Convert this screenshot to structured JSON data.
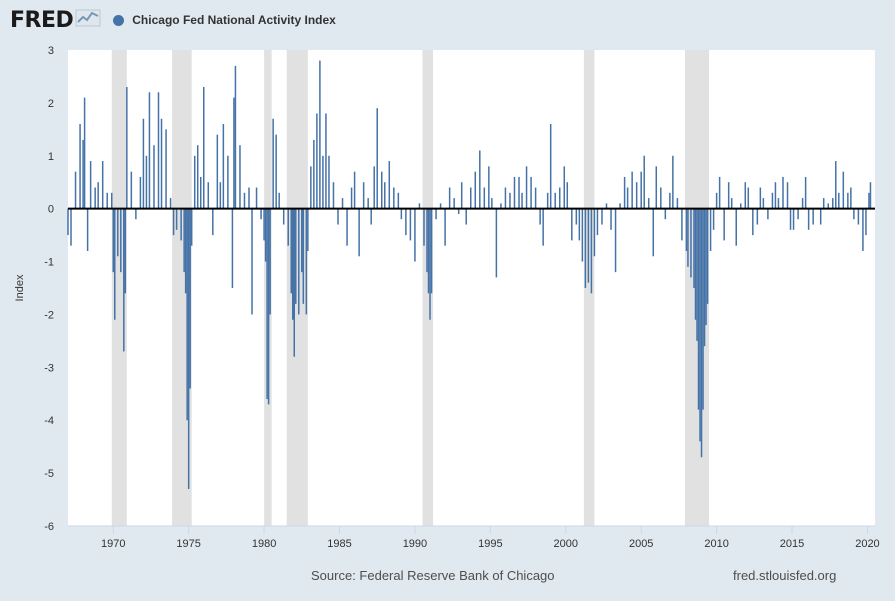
{
  "brand": {
    "name": "FRED",
    "icon": "fred-chart-icon"
  },
  "chart_data": {
    "type": "bar",
    "title": "",
    "legend": [
      {
        "name": "Chicago Fed National Activity Index",
        "color": "#4572a7"
      }
    ],
    "legend_placement": "top-left",
    "ylabel": "Index",
    "xlabel": "",
    "ylim": [
      -6,
      3
    ],
    "xlim": [
      1967.0,
      2020.5
    ],
    "y_ticks": [
      3,
      2,
      1,
      0,
      -1,
      -2,
      -3,
      -4,
      -5,
      -6
    ],
    "x_ticks": [
      1970,
      1975,
      1980,
      1985,
      1990,
      1995,
      2000,
      2005,
      2010,
      2015,
      2020
    ],
    "recessions": [
      [
        1969.9,
        1970.9
      ],
      [
        1973.9,
        1975.2
      ],
      [
        1980.0,
        1980.5
      ],
      [
        1981.5,
        1982.9
      ],
      [
        1990.5,
        1991.2
      ],
      [
        2001.2,
        2001.9
      ],
      [
        2007.9,
        2009.5
      ]
    ],
    "recession_color": "#e1e1e1",
    "series_color": "#4572a7",
    "points": [
      [
        1967.0,
        -0.5
      ],
      [
        1967.2,
        -0.7
      ],
      [
        1967.5,
        0.7
      ],
      [
        1967.8,
        1.6
      ],
      [
        1968.0,
        1.3
      ],
      [
        1968.1,
        2.1
      ],
      [
        1968.3,
        -0.8
      ],
      [
        1968.5,
        0.9
      ],
      [
        1968.8,
        0.4
      ],
      [
        1969.0,
        0.5
      ],
      [
        1969.3,
        0.9
      ],
      [
        1969.6,
        0.3
      ],
      [
        1969.9,
        0.3
      ],
      [
        1970.0,
        -1.2
      ],
      [
        1970.1,
        -2.1
      ],
      [
        1970.3,
        -0.9
      ],
      [
        1970.5,
        -1.2
      ],
      [
        1970.7,
        -2.7
      ],
      [
        1970.8,
        -1.6
      ],
      [
        1970.9,
        2.3
      ],
      [
        1971.2,
        0.7
      ],
      [
        1971.5,
        -0.2
      ],
      [
        1971.8,
        0.6
      ],
      [
        1972.0,
        1.7
      ],
      [
        1972.2,
        1.0
      ],
      [
        1972.4,
        2.2
      ],
      [
        1972.7,
        1.2
      ],
      [
        1973.0,
        2.2
      ],
      [
        1973.2,
        1.7
      ],
      [
        1973.5,
        1.5
      ],
      [
        1973.8,
        0.2
      ],
      [
        1974.0,
        -0.5
      ],
      [
        1974.2,
        -0.4
      ],
      [
        1974.5,
        -0.6
      ],
      [
        1974.7,
        -1.2
      ],
      [
        1974.8,
        -1.6
      ],
      [
        1974.9,
        -4.0
      ],
      [
        1975.0,
        -5.3
      ],
      [
        1975.1,
        -3.4
      ],
      [
        1975.2,
        -0.7
      ],
      [
        1975.4,
        1.0
      ],
      [
        1975.6,
        1.2
      ],
      [
        1975.8,
        0.6
      ],
      [
        1976.0,
        2.3
      ],
      [
        1976.3,
        0.5
      ],
      [
        1976.6,
        -0.5
      ],
      [
        1976.9,
        1.4
      ],
      [
        1977.1,
        0.5
      ],
      [
        1977.3,
        1.6
      ],
      [
        1977.6,
        1.0
      ],
      [
        1977.9,
        -1.5
      ],
      [
        1978.0,
        2.1
      ],
      [
        1978.1,
        2.7
      ],
      [
        1978.4,
        1.2
      ],
      [
        1978.7,
        0.3
      ],
      [
        1979.0,
        0.4
      ],
      [
        1979.2,
        -2.0
      ],
      [
        1979.5,
        0.4
      ],
      [
        1979.8,
        -0.2
      ],
      [
        1980.0,
        -0.6
      ],
      [
        1980.1,
        -1.0
      ],
      [
        1980.2,
        -3.6
      ],
      [
        1980.3,
        -3.7
      ],
      [
        1980.4,
        -2.0
      ],
      [
        1980.6,
        1.7
      ],
      [
        1980.8,
        1.4
      ],
      [
        1981.0,
        0.3
      ],
      [
        1981.3,
        -0.3
      ],
      [
        1981.6,
        -0.7
      ],
      [
        1981.8,
        -1.6
      ],
      [
        1981.9,
        -2.1
      ],
      [
        1982.0,
        -2.8
      ],
      [
        1982.1,
        -1.8
      ],
      [
        1982.3,
        -2.0
      ],
      [
        1982.5,
        -1.2
      ],
      [
        1982.6,
        -1.8
      ],
      [
        1982.8,
        -2.0
      ],
      [
        1982.9,
        -0.8
      ],
      [
        1983.1,
        0.8
      ],
      [
        1983.3,
        1.3
      ],
      [
        1983.5,
        1.8
      ],
      [
        1983.7,
        2.8
      ],
      [
        1983.9,
        1.0
      ],
      [
        1984.1,
        1.8
      ],
      [
        1984.3,
        1.0
      ],
      [
        1984.6,
        0.5
      ],
      [
        1984.9,
        -0.3
      ],
      [
        1985.2,
        0.2
      ],
      [
        1985.5,
        -0.7
      ],
      [
        1985.8,
        0.4
      ],
      [
        1986.0,
        0.7
      ],
      [
        1986.3,
        -0.9
      ],
      [
        1986.6,
        0.5
      ],
      [
        1986.9,
        0.2
      ],
      [
        1987.1,
        -0.3
      ],
      [
        1987.3,
        0.8
      ],
      [
        1987.5,
        1.9
      ],
      [
        1987.8,
        0.7
      ],
      [
        1988.0,
        0.5
      ],
      [
        1988.3,
        0.9
      ],
      [
        1988.6,
        0.4
      ],
      [
        1988.9,
        0.3
      ],
      [
        1989.1,
        -0.2
      ],
      [
        1989.4,
        -0.5
      ],
      [
        1989.7,
        -0.6
      ],
      [
        1990.0,
        -1.0
      ],
      [
        1990.3,
        0.1
      ],
      [
        1990.6,
        -0.7
      ],
      [
        1990.8,
        -1.2
      ],
      [
        1990.9,
        -1.6
      ],
      [
        1991.0,
        -2.1
      ],
      [
        1991.1,
        -1.6
      ],
      [
        1991.4,
        -0.2
      ],
      [
        1991.7,
        0.1
      ],
      [
        1992.0,
        -0.7
      ],
      [
        1992.3,
        0.4
      ],
      [
        1992.6,
        0.2
      ],
      [
        1992.9,
        -0.1
      ],
      [
        1993.1,
        0.5
      ],
      [
        1993.4,
        -0.3
      ],
      [
        1993.7,
        0.4
      ],
      [
        1994.0,
        0.7
      ],
      [
        1994.3,
        1.1
      ],
      [
        1994.6,
        0.4
      ],
      [
        1994.9,
        0.8
      ],
      [
        1995.1,
        0.2
      ],
      [
        1995.4,
        -1.3
      ],
      [
        1995.7,
        0.1
      ],
      [
        1996.0,
        0.4
      ],
      [
        1996.3,
        0.3
      ],
      [
        1996.6,
        0.6
      ],
      [
        1996.9,
        0.6
      ],
      [
        1997.1,
        0.3
      ],
      [
        1997.4,
        0.8
      ],
      [
        1997.7,
        0.6
      ],
      [
        1998.0,
        0.4
      ],
      [
        1998.3,
        -0.3
      ],
      [
        1998.5,
        -0.7
      ],
      [
        1998.8,
        0.3
      ],
      [
        1999.0,
        1.6
      ],
      [
        1999.3,
        0.3
      ],
      [
        1999.6,
        0.4
      ],
      [
        1999.9,
        0.8
      ],
      [
        2000.1,
        0.5
      ],
      [
        2000.4,
        -0.6
      ],
      [
        2000.7,
        -0.3
      ],
      [
        2000.9,
        -0.6
      ],
      [
        2001.1,
        -1.0
      ],
      [
        2001.3,
        -1.5
      ],
      [
        2001.5,
        -1.4
      ],
      [
        2001.7,
        -1.6
      ],
      [
        2001.9,
        -0.9
      ],
      [
        2002.1,
        -0.5
      ],
      [
        2002.4,
        -0.3
      ],
      [
        2002.7,
        0.1
      ],
      [
        2003.0,
        -0.4
      ],
      [
        2003.3,
        -1.2
      ],
      [
        2003.6,
        0.1
      ],
      [
        2003.9,
        0.6
      ],
      [
        2004.1,
        0.4
      ],
      [
        2004.4,
        0.7
      ],
      [
        2004.7,
        0.5
      ],
      [
        2005.0,
        0.7
      ],
      [
        2005.2,
        1.0
      ],
      [
        2005.5,
        0.2
      ],
      [
        2005.8,
        -0.9
      ],
      [
        2006.0,
        0.8
      ],
      [
        2006.3,
        0.4
      ],
      [
        2006.6,
        -0.2
      ],
      [
        2006.9,
        0.3
      ],
      [
        2007.1,
        1.0
      ],
      [
        2007.4,
        0.2
      ],
      [
        2007.7,
        -0.6
      ],
      [
        2008.0,
        -0.8
      ],
      [
        2008.1,
        -1.1
      ],
      [
        2008.3,
        -1.3
      ],
      [
        2008.5,
        -1.5
      ],
      [
        2008.6,
        -2.1
      ],
      [
        2008.7,
        -2.5
      ],
      [
        2008.8,
        -3.8
      ],
      [
        2008.9,
        -4.4
      ],
      [
        2009.0,
        -4.7
      ],
      [
        2009.1,
        -3.8
      ],
      [
        2009.2,
        -2.6
      ],
      [
        2009.3,
        -2.2
      ],
      [
        2009.4,
        -1.8
      ],
      [
        2009.6,
        -0.8
      ],
      [
        2009.8,
        -0.4
      ],
      [
        2010.0,
        0.3
      ],
      [
        2010.2,
        0.6
      ],
      [
        2010.5,
        -0.6
      ],
      [
        2010.8,
        0.5
      ],
      [
        2011.0,
        0.2
      ],
      [
        2011.3,
        -0.7
      ],
      [
        2011.6,
        0.1
      ],
      [
        2011.9,
        0.5
      ],
      [
        2012.1,
        0.4
      ],
      [
        2012.4,
        -0.5
      ],
      [
        2012.7,
        -0.3
      ],
      [
        2012.9,
        0.4
      ],
      [
        2013.1,
        0.2
      ],
      [
        2013.4,
        -0.2
      ],
      [
        2013.7,
        0.3
      ],
      [
        2013.9,
        0.5
      ],
      [
        2014.1,
        0.2
      ],
      [
        2014.4,
        0.6
      ],
      [
        2014.7,
        0.5
      ],
      [
        2014.9,
        -0.4
      ],
      [
        2015.1,
        -0.4
      ],
      [
        2015.4,
        -0.2
      ],
      [
        2015.7,
        0.2
      ],
      [
        2015.9,
        0.6
      ],
      [
        2016.1,
        -0.4
      ],
      [
        2016.4,
        -0.3
      ],
      [
        2016.7,
        0.0
      ],
      [
        2016.9,
        -0.3
      ],
      [
        2017.1,
        0.2
      ],
      [
        2017.4,
        0.1
      ],
      [
        2017.7,
        0.2
      ],
      [
        2017.9,
        0.9
      ],
      [
        2018.1,
        0.3
      ],
      [
        2018.4,
        0.7
      ],
      [
        2018.7,
        0.3
      ],
      [
        2018.9,
        0.4
      ],
      [
        2019.1,
        -0.2
      ],
      [
        2019.4,
        -0.3
      ],
      [
        2019.7,
        -0.8
      ],
      [
        2019.9,
        -0.5
      ],
      [
        2020.1,
        0.3
      ],
      [
        2020.2,
        0.5
      ]
    ]
  },
  "footer": {
    "source": "Source: Federal Reserve Bank of Chicago",
    "url": "fred.stlouisfed.org"
  }
}
